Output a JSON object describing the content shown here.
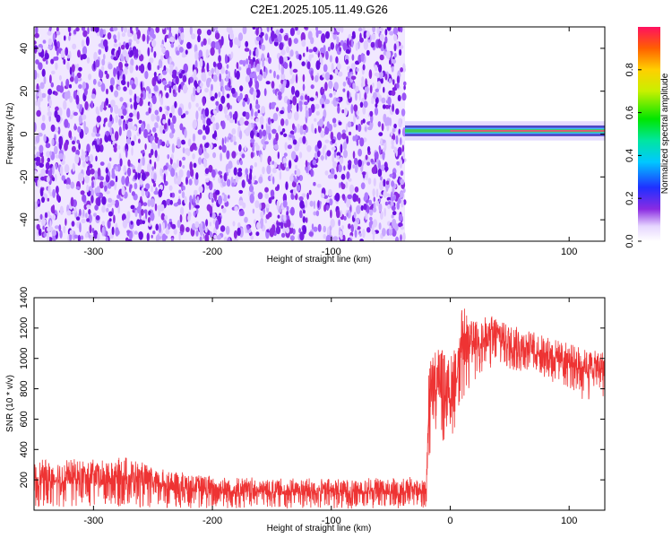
{
  "figure": {
    "title": "C2E1.2025.105.11.49.G26"
  },
  "chart_data": [
    {
      "type": "heatmap",
      "id": "spectrogram",
      "title": "",
      "xlabel": "Height of straight line (km)",
      "ylabel": "Frequency (Hz)",
      "xlim": [
        -350,
        130
      ],
      "ylim": [
        -50,
        50
      ],
      "xticks": [
        -300,
        -200,
        -100,
        0,
        100
      ],
      "xtick_labels": [
        "-300",
        "-200",
        "-100",
        "0",
        "100"
      ],
      "yticks": [
        -40,
        -20,
        0,
        20,
        40
      ],
      "ytick_labels": [
        "-40",
        "-20",
        "0",
        "20",
        "40"
      ],
      "noise_region_x": [
        -350,
        -38
      ],
      "signal_band": {
        "x": [
          -38,
          130
        ],
        "frequency_hz": 1.5,
        "band_halfwidth_hz": 2.5
      },
      "colorbar": {
        "label": "Normalized spectral amplitude",
        "range": [
          0,
          1
        ],
        "ticks": [
          0.0,
          0.2,
          0.4,
          0.6,
          0.8
        ],
        "tick_labels": [
          "0.0",
          "0.2",
          "0.4",
          "0.6",
          "0.8"
        ]
      },
      "grid": false
    },
    {
      "type": "line",
      "id": "snr",
      "title": "",
      "xlabel": "Height of straight line (km)",
      "ylabel": "SNR (10 * v/v)",
      "xlim": [
        -350,
        130
      ],
      "ylim": [
        0,
        1400
      ],
      "xticks": [
        -300,
        -200,
        -100,
        0,
        100
      ],
      "xtick_labels": [
        "-300",
        "-200",
        "-100",
        "0",
        "100"
      ],
      "yticks": [
        200,
        400,
        600,
        800,
        1000,
        1200,
        1400
      ],
      "ytick_labels": [
        "200",
        "400",
        "600",
        "800",
        "1000",
        "1200",
        "1400"
      ],
      "series_color": "#ee3333",
      "grid": false,
      "envelope": [
        {
          "x": -350,
          "low": 20,
          "high": 330,
          "mean": 160
        },
        {
          "x": -320,
          "low": 20,
          "high": 340,
          "mean": 170
        },
        {
          "x": -290,
          "low": 20,
          "high": 330,
          "mean": 165
        },
        {
          "x": -270,
          "low": 20,
          "high": 360,
          "mean": 170
        },
        {
          "x": -250,
          "low": 15,
          "high": 280,
          "mean": 140
        },
        {
          "x": -200,
          "low": 10,
          "high": 230,
          "mean": 110
        },
        {
          "x": -150,
          "low": 10,
          "high": 210,
          "mean": 100
        },
        {
          "x": -100,
          "low": 10,
          "high": 210,
          "mean": 100
        },
        {
          "x": -50,
          "low": 10,
          "high": 220,
          "mean": 105
        },
        {
          "x": -20,
          "low": 10,
          "high": 220,
          "mean": 105
        },
        {
          "x": -18,
          "low": 300,
          "high": 1000,
          "mean": 650
        },
        {
          "x": -10,
          "low": 400,
          "high": 1100,
          "mean": 750
        },
        {
          "x": 0,
          "low": 450,
          "high": 1000,
          "mean": 700
        },
        {
          "x": 10,
          "low": 700,
          "high": 1350,
          "mean": 950
        },
        {
          "x": 20,
          "low": 850,
          "high": 1250,
          "mean": 1050
        },
        {
          "x": 40,
          "low": 950,
          "high": 1300,
          "mean": 1100
        },
        {
          "x": 60,
          "low": 900,
          "high": 1200,
          "mean": 1050
        },
        {
          "x": 80,
          "low": 850,
          "high": 1150,
          "mean": 1000
        },
        {
          "x": 100,
          "low": 800,
          "high": 1100,
          "mean": 950
        },
        {
          "x": 115,
          "low": 700,
          "high": 1050,
          "mean": 900
        },
        {
          "x": 130,
          "low": 750,
          "high": 1050,
          "mean": 900
        }
      ]
    }
  ]
}
